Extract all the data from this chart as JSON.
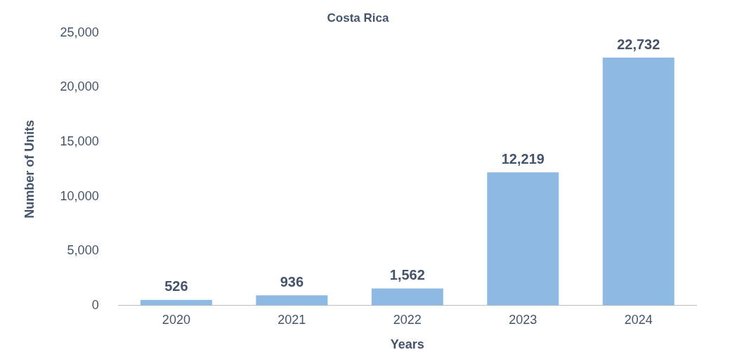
{
  "chart_data": {
    "type": "bar",
    "title": "Costa Rica",
    "xlabel": "Years",
    "ylabel": "Number of Units",
    "categories": [
      "2020",
      "2021",
      "2022",
      "2023",
      "2024"
    ],
    "values": [
      526,
      936,
      1562,
      12219,
      22732
    ],
    "value_labels": [
      "526",
      "936",
      "1,562",
      "12,219",
      "22,732"
    ],
    "color": "#8db9e2",
    "ylim": [
      0,
      25000
    ],
    "yticks": [
      {
        "value": 0,
        "label": "0"
      },
      {
        "value": 5000,
        "label": "5,000"
      },
      {
        "value": 10000,
        "label": "10,000"
      },
      {
        "value": 15000,
        "label": "15,000"
      },
      {
        "value": 20000,
        "label": "20,000"
      },
      {
        "value": 25000,
        "label": "25,000"
      }
    ],
    "grid": false,
    "legend": false
  }
}
